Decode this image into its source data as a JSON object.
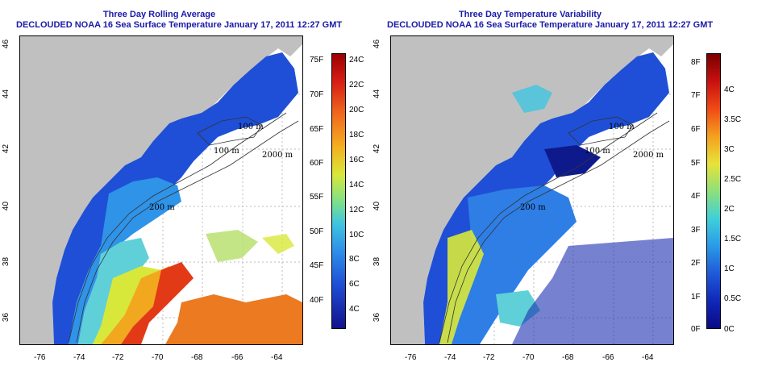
{
  "left_panel": {
    "title_line1": "Three Day Rolling Average",
    "title_line2": "DECLOUDED NOAA 16 Sea Surface Temperature January 17, 2011 12:27 GMT",
    "colorbar_f_labels": [
      "75F",
      "70F",
      "65F",
      "60F",
      "55F",
      "50F",
      "45F",
      "40F"
    ],
    "colorbar_c_labels": [
      "24C",
      "22C",
      "20C",
      "18C",
      "16C",
      "14C",
      "12C",
      "10C",
      "8C",
      "6C",
      "4C"
    ]
  },
  "right_panel": {
    "title_line1": "Three Day Temperature Variability",
    "title_line2": "DECLOUDED NOAA 16 Sea Surface Temperature January 17, 2011 12:27 GMT",
    "colorbar_f_labels": [
      "8F",
      "7F",
      "6F",
      "5F",
      "4F",
      "3F",
      "2F",
      "1F",
      "0F"
    ],
    "colorbar_c_labels": [
      "4C",
      "3.5C",
      "3C",
      "2.5C",
      "2C",
      "1.5C",
      "1C",
      "0.5C",
      "0C"
    ]
  },
  "axes": {
    "x_ticks": [
      "-76",
      "-74",
      "-72",
      "-70",
      "-68",
      "-66",
      "-64"
    ],
    "y_ticks": [
      "46",
      "44",
      "42",
      "40",
      "38",
      "36"
    ]
  },
  "isobath_labels": [
    "100 m",
    "2000 m",
    "100 m",
    "200 m",
    "200 m"
  ],
  "colors": {
    "land": "#c0c0c0",
    "title": "#1a1aa8",
    "grid": "#bbbbbb"
  }
}
